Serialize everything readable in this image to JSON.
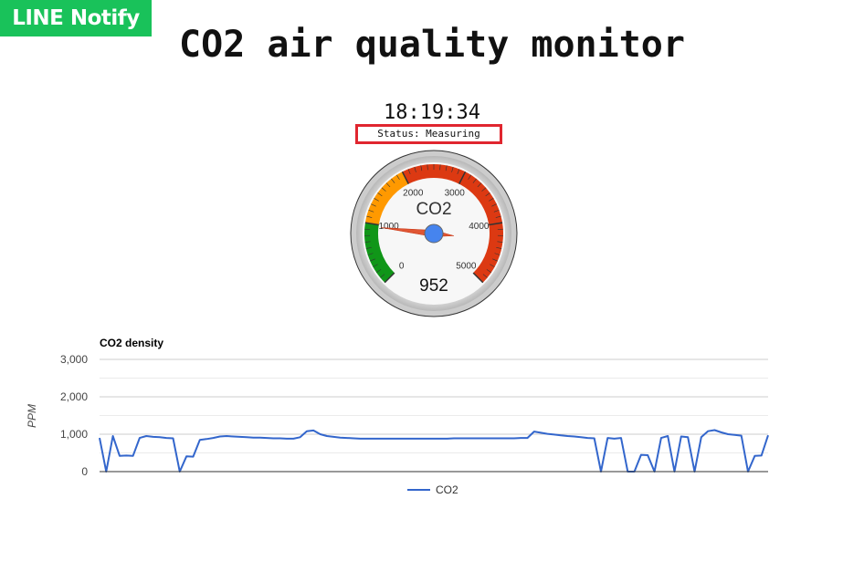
{
  "badge": {
    "label": "LINE Notify",
    "color": "#19c25a"
  },
  "header": {
    "title": "CO2 air quality monitor"
  },
  "clock": {
    "time": "18:19:34"
  },
  "status": {
    "text": "Status: Measuring"
  },
  "gauge": {
    "label": "CO2",
    "value": 952,
    "value_text": "952",
    "min": 0,
    "max": 5000,
    "ticks": [
      "0",
      "1000",
      "2000",
      "3000",
      "4000",
      "5000"
    ],
    "zones": [
      {
        "from": 0,
        "to": 1000,
        "color": "#109618"
      },
      {
        "from": 1000,
        "to": 2000,
        "color": "#ff9900"
      },
      {
        "from": 2000,
        "to": 5000,
        "color": "#dc3912"
      }
    ]
  },
  "chart_data": {
    "type": "line",
    "title": "CO2 density",
    "xlabel": "",
    "ylabel": "PPM",
    "ylim": [
      0,
      3000
    ],
    "yticks": [
      "0",
      "1,000",
      "2,000",
      "3,000"
    ],
    "ytick_values": [
      0,
      1000,
      2000,
      3000
    ],
    "legend": "bottom",
    "grid": true,
    "series": [
      {
        "name": "CO2",
        "color": "#3366cc",
        "x": [
          0,
          1,
          2,
          3,
          4,
          5,
          6,
          7,
          8,
          9,
          10,
          11,
          12,
          13,
          14,
          15,
          16,
          17,
          18,
          19,
          20,
          21,
          22,
          23,
          24,
          25,
          26,
          27,
          28,
          29,
          30,
          31,
          32,
          33,
          34,
          35,
          36,
          37,
          38,
          39,
          40,
          41,
          42,
          43,
          44,
          45,
          46,
          47,
          48,
          49,
          50,
          51,
          52,
          53,
          54,
          55,
          56,
          57,
          58,
          59,
          60,
          61,
          62,
          63,
          64,
          65,
          66,
          67,
          68,
          69,
          70,
          71,
          72,
          73,
          74,
          75,
          76,
          77,
          78,
          79,
          80,
          81,
          82,
          83,
          84,
          85,
          86,
          87,
          88,
          89,
          90,
          91,
          92,
          93,
          94,
          95,
          96,
          97,
          98,
          99,
          100
        ],
        "values": [
          900,
          0,
          950,
          420,
          430,
          420,
          900,
          950,
          930,
          920,
          900,
          890,
          0,
          410,
          400,
          850,
          870,
          900,
          940,
          950,
          940,
          930,
          920,
          910,
          910,
          900,
          890,
          890,
          880,
          880,
          920,
          1080,
          1100,
          1000,
          950,
          930,
          910,
          900,
          890,
          880,
          880,
          880,
          880,
          880,
          880,
          880,
          880,
          880,
          880,
          880,
          880,
          880,
          880,
          890,
          890,
          890,
          890,
          890,
          890,
          890,
          890,
          890,
          890,
          900,
          900,
          1070,
          1040,
          1010,
          990,
          970,
          950,
          940,
          920,
          900,
          890,
          0,
          900,
          880,
          900,
          0,
          0,
          450,
          440,
          0,
          900,
          950,
          0,
          940,
          920,
          0,
          920,
          1080,
          1110,
          1050,
          1000,
          980,
          960,
          0,
          420,
          430,
          970
        ]
      }
    ]
  }
}
